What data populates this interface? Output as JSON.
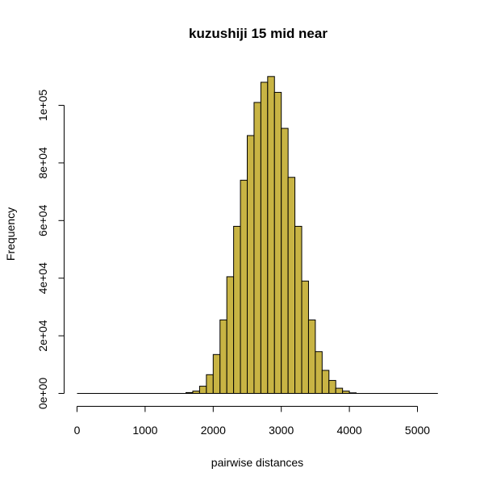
{
  "chart_data": {
    "type": "bar",
    "title": "kuzushiji 15 mid near",
    "xlabel": "pairwise distances",
    "ylabel": "Frequency",
    "bar_color": "#C8B444",
    "xlim": [
      0,
      5300
    ],
    "ylim": [
      0,
      110500
    ],
    "bin_width": 100,
    "xticks": [
      0,
      1000,
      2000,
      3000,
      4000,
      5000
    ],
    "xtick_labels": [
      "0",
      "1000",
      "2000",
      "3000",
      "4000",
      "5000"
    ],
    "yticks": [
      0,
      20000,
      40000,
      60000,
      80000,
      100000
    ],
    "ytick_labels": [
      "0e+00",
      "2e+04",
      "4e+04",
      "6e+04",
      "8e+04",
      "1e+05"
    ],
    "x": [
      0,
      100,
      200,
      300,
      400,
      500,
      600,
      700,
      800,
      900,
      1000,
      1100,
      1200,
      1300,
      1400,
      1500,
      1600,
      1700,
      1800,
      1900,
      2000,
      2100,
      2200,
      2300,
      2400,
      2500,
      2600,
      2700,
      2800,
      2900,
      3000,
      3100,
      3200,
      3300,
      3400,
      3500,
      3600,
      3700,
      3800,
      3900,
      4000,
      4100,
      4200,
      4300,
      4400,
      4500,
      4600,
      4700,
      4800,
      4900,
      5000,
      5100,
      5200
    ],
    "values": [
      0,
      0,
      0,
      0,
      0,
      0,
      0,
      0,
      0,
      0,
      0,
      0,
      0,
      0,
      0,
      0,
      300,
      800,
      2500,
      6500,
      13500,
      25500,
      40500,
      58000,
      74000,
      89500,
      101000,
      108000,
      110000,
      104500,
      92000,
      75000,
      58000,
      39000,
      25500,
      14500,
      8000,
      4500,
      1800,
      800,
      200,
      0,
      0,
      0,
      0,
      0,
      0,
      0,
      0,
      0,
      0,
      0,
      0
    ]
  }
}
